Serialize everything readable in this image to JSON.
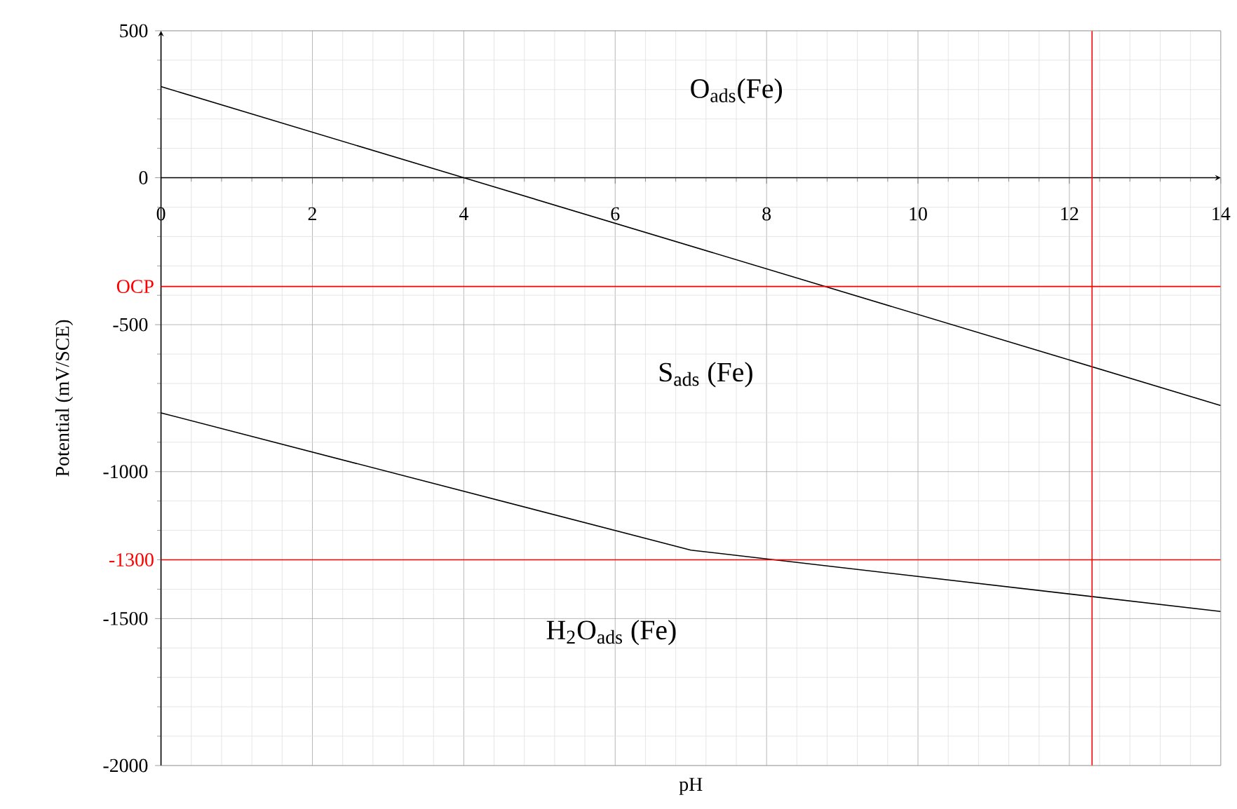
{
  "chart_data": {
    "type": "line",
    "xlabel": "pH",
    "ylabel": "Potential (mV/SCE)",
    "xlim": [
      0,
      14
    ],
    "xticks": [
      0,
      2,
      4,
      6,
      8,
      10,
      12,
      14
    ],
    "ylim": [
      -2000,
      500
    ],
    "yticks": [
      -2000,
      -1500,
      -1000,
      -500,
      0,
      500
    ],
    "grid": true,
    "marker": "none",
    "line_style": "solid",
    "series": [
      {
        "color": "#000000",
        "x": [
          0,
          4,
          14
        ],
        "values": [
          310,
          0,
          -775
        ]
      },
      {
        "color": "#000000",
        "x": [
          0,
          7,
          14
        ],
        "values": [
          -800,
          -1267,
          -1476
        ]
      }
    ],
    "ref_lines": [
      {
        "axis": "y",
        "value": -370,
        "label": "OCP",
        "color": "#ff0000"
      },
      {
        "axis": "y",
        "value": -1300,
        "label": "-1300",
        "color": "#ff0000"
      },
      {
        "axis": "x",
        "value": 12.3,
        "color": "#ff0000"
      }
    ],
    "annotations": [
      "O$_{ads}$(Fe)",
      "S$_{ads}$ (Fe)",
      "H$_{2}$O$_{ads}$ (Fe)"
    ]
  }
}
